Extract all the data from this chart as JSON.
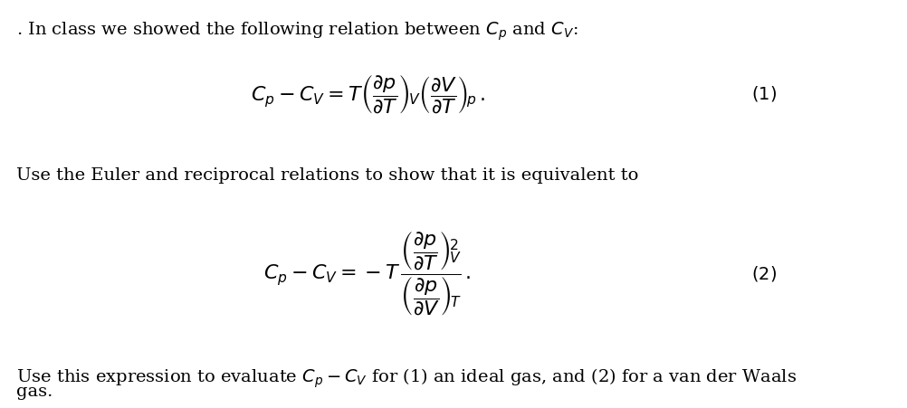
{
  "bg_color": "#ffffff",
  "text_color": "#000000",
  "fig_width": 10.03,
  "fig_height": 4.51,
  "dpi": 100,
  "line1": ". In class we showed the following relation between $C_p$ and $C_V$:",
  "eq1": "$C_p - C_V = T\\left(\\dfrac{\\partial p}{\\partial T}\\right)_{\\!V}\\left(\\dfrac{\\partial V}{\\partial T}\\right)_{\\!p}\\,.$",
  "eq1_num": "$(1)$",
  "line2": "Use the Euler and reciprocal relations to show that it is equivalent to",
  "eq2": "$C_p - C_V = -T\\,\\dfrac{\\left(\\dfrac{\\partial p}{\\partial T}\\right)_{\\!V}^{\\!2}}{\\left(\\dfrac{\\partial p}{\\partial V}\\right)_{\\!T}}\\,.$",
  "eq2_num": "$(2)$",
  "line3": "Use this expression to evaluate $C_p - C_V$ for (1) an ideal gas, and (2) for a van der Waals",
  "line4": "gas.",
  "font_size_text": 14,
  "font_size_eq": 16
}
